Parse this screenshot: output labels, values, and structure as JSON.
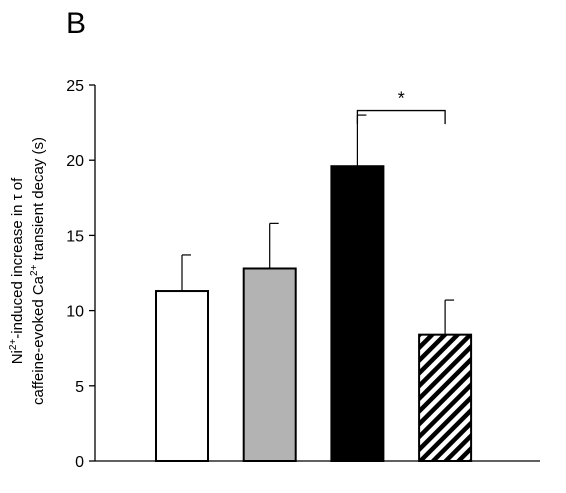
{
  "panel_label": "B",
  "chart_data": {
    "type": "bar",
    "title": "",
    "xlabel": "",
    "ylabel_line1_pre": "Ni",
    "ylabel_line1_sup": "2+",
    "ylabel_line1_post": "-induced increase in τ of",
    "ylabel_line2_pre": "caffeine-evoked Ca",
    "ylabel_line2_sup": "2+",
    "ylabel_line2_post": " transient decay (s)",
    "ylim": [
      0,
      25
    ],
    "yticks": [
      0,
      5,
      10,
      15,
      20,
      25
    ],
    "categories": [
      "",
      "",
      "",
      ""
    ],
    "values": [
      11.3,
      12.8,
      19.6,
      8.4
    ],
    "errors": [
      2.4,
      3.0,
      3.4,
      2.3
    ],
    "fills": [
      "#ffffff",
      "#b3b3b3",
      "#000000",
      "hatch"
    ],
    "significance": {
      "from": 2,
      "to": 3,
      "label": "*"
    },
    "grid": false
  }
}
